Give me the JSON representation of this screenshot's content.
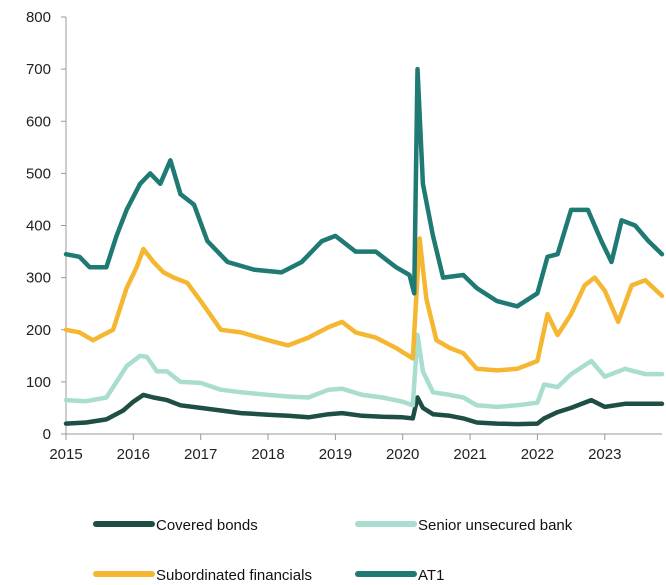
{
  "chart_data": {
    "type": "line",
    "title": "",
    "xlabel": "",
    "ylabel": "",
    "xlim": [
      2015.0,
      2023.85
    ],
    "ylim": [
      0,
      800
    ],
    "yticks": [
      0,
      100,
      200,
      300,
      400,
      500,
      600,
      700,
      800
    ],
    "xticks": [
      2015,
      2016,
      2017,
      2018,
      2019,
      2020,
      2021,
      2022,
      2023
    ],
    "ytick_labels": [
      "0",
      "100",
      "200",
      "300",
      "400",
      "500",
      "600",
      "700",
      "800"
    ],
    "xtick_labels": [
      "2015",
      "2016",
      "2017",
      "2018",
      "2019",
      "2020",
      "2021",
      "2022",
      "2023"
    ],
    "grid": false,
    "legend_position": "bottom",
    "series": [
      {
        "name": "Covered bonds",
        "color": "#1f4e45",
        "points": [
          [
            2015.0,
            20
          ],
          [
            2015.3,
            22
          ],
          [
            2015.6,
            28
          ],
          [
            2015.85,
            45
          ],
          [
            2016.0,
            62
          ],
          [
            2016.15,
            75
          ],
          [
            2016.3,
            70
          ],
          [
            2016.5,
            65
          ],
          [
            2016.7,
            55
          ],
          [
            2017.0,
            50
          ],
          [
            2017.3,
            45
          ],
          [
            2017.6,
            40
          ],
          [
            2018.0,
            37
          ],
          [
            2018.3,
            35
          ],
          [
            2018.6,
            32
          ],
          [
            2018.9,
            38
          ],
          [
            2019.1,
            40
          ],
          [
            2019.4,
            35
          ],
          [
            2019.7,
            33
          ],
          [
            2020.0,
            32
          ],
          [
            2020.15,
            30
          ],
          [
            2020.22,
            70
          ],
          [
            2020.3,
            50
          ],
          [
            2020.45,
            38
          ],
          [
            2020.7,
            35
          ],
          [
            2020.9,
            30
          ],
          [
            2021.1,
            22
          ],
          [
            2021.4,
            20
          ],
          [
            2021.7,
            19
          ],
          [
            2022.0,
            20
          ],
          [
            2022.1,
            30
          ],
          [
            2022.3,
            42
          ],
          [
            2022.5,
            50
          ],
          [
            2022.8,
            65
          ],
          [
            2023.0,
            52
          ],
          [
            2023.3,
            58
          ],
          [
            2023.6,
            58
          ],
          [
            2023.85,
            58
          ]
        ]
      },
      {
        "name": "Senior unsecured bank",
        "color": "#a8ddd0",
        "points": [
          [
            2015.0,
            65
          ],
          [
            2015.3,
            63
          ],
          [
            2015.6,
            70
          ],
          [
            2015.75,
            100
          ],
          [
            2015.9,
            130
          ],
          [
            2016.1,
            150
          ],
          [
            2016.2,
            148
          ],
          [
            2016.35,
            120
          ],
          [
            2016.5,
            120
          ],
          [
            2016.7,
            100
          ],
          [
            2017.0,
            98
          ],
          [
            2017.3,
            85
          ],
          [
            2017.6,
            80
          ],
          [
            2018.0,
            75
          ],
          [
            2018.3,
            72
          ],
          [
            2018.6,
            70
          ],
          [
            2018.9,
            85
          ],
          [
            2019.1,
            87
          ],
          [
            2019.4,
            75
          ],
          [
            2019.7,
            70
          ],
          [
            2020.0,
            62
          ],
          [
            2020.15,
            55
          ],
          [
            2020.22,
            190
          ],
          [
            2020.3,
            120
          ],
          [
            2020.45,
            80
          ],
          [
            2020.7,
            75
          ],
          [
            2020.9,
            70
          ],
          [
            2021.1,
            55
          ],
          [
            2021.4,
            52
          ],
          [
            2021.7,
            55
          ],
          [
            2022.0,
            60
          ],
          [
            2022.1,
            95
          ],
          [
            2022.3,
            90
          ],
          [
            2022.5,
            115
          ],
          [
            2022.8,
            140
          ],
          [
            2023.0,
            110
          ],
          [
            2023.3,
            125
          ],
          [
            2023.6,
            115
          ],
          [
            2023.85,
            115
          ]
        ]
      },
      {
        "name": "Subordinated financials",
        "color": "#f5b731",
        "points": [
          [
            2015.0,
            200
          ],
          [
            2015.2,
            195
          ],
          [
            2015.4,
            180
          ],
          [
            2015.7,
            200
          ],
          [
            2015.9,
            280
          ],
          [
            2016.05,
            320
          ],
          [
            2016.15,
            355
          ],
          [
            2016.3,
            330
          ],
          [
            2016.45,
            310
          ],
          [
            2016.6,
            300
          ],
          [
            2016.8,
            290
          ],
          [
            2017.0,
            255
          ],
          [
            2017.3,
            200
          ],
          [
            2017.6,
            195
          ],
          [
            2018.0,
            180
          ],
          [
            2018.3,
            170
          ],
          [
            2018.6,
            185
          ],
          [
            2018.9,
            205
          ],
          [
            2019.1,
            215
          ],
          [
            2019.3,
            195
          ],
          [
            2019.6,
            185
          ],
          [
            2019.9,
            165
          ],
          [
            2020.15,
            145
          ],
          [
            2020.25,
            375
          ],
          [
            2020.35,
            260
          ],
          [
            2020.5,
            180
          ],
          [
            2020.7,
            165
          ],
          [
            2020.9,
            155
          ],
          [
            2021.1,
            125
          ],
          [
            2021.4,
            122
          ],
          [
            2021.7,
            125
          ],
          [
            2022.0,
            140
          ],
          [
            2022.15,
            230
          ],
          [
            2022.3,
            190
          ],
          [
            2022.5,
            230
          ],
          [
            2022.7,
            285
          ],
          [
            2022.85,
            300
          ],
          [
            2023.0,
            275
          ],
          [
            2023.2,
            215
          ],
          [
            2023.4,
            285
          ],
          [
            2023.6,
            295
          ],
          [
            2023.85,
            265
          ]
        ]
      },
      {
        "name": "AT1",
        "color": "#1f7a73",
        "points": [
          [
            2015.0,
            345
          ],
          [
            2015.2,
            340
          ],
          [
            2015.35,
            320
          ],
          [
            2015.6,
            320
          ],
          [
            2015.75,
            380
          ],
          [
            2015.9,
            430
          ],
          [
            2016.1,
            480
          ],
          [
            2016.25,
            500
          ],
          [
            2016.4,
            480
          ],
          [
            2016.55,
            525
          ],
          [
            2016.7,
            460
          ],
          [
            2016.9,
            440
          ],
          [
            2017.1,
            370
          ],
          [
            2017.4,
            330
          ],
          [
            2017.8,
            315
          ],
          [
            2018.2,
            310
          ],
          [
            2018.5,
            330
          ],
          [
            2018.8,
            370
          ],
          [
            2019.0,
            380
          ],
          [
            2019.3,
            350
          ],
          [
            2019.6,
            350
          ],
          [
            2019.9,
            320
          ],
          [
            2020.1,
            305
          ],
          [
            2020.17,
            270
          ],
          [
            2020.22,
            700
          ],
          [
            2020.3,
            480
          ],
          [
            2020.45,
            380
          ],
          [
            2020.6,
            300
          ],
          [
            2020.9,
            305
          ],
          [
            2021.1,
            280
          ],
          [
            2021.4,
            255
          ],
          [
            2021.7,
            245
          ],
          [
            2022.0,
            270
          ],
          [
            2022.15,
            340
          ],
          [
            2022.3,
            345
          ],
          [
            2022.5,
            430
          ],
          [
            2022.75,
            430
          ],
          [
            2022.95,
            370
          ],
          [
            2023.1,
            330
          ],
          [
            2023.25,
            410
          ],
          [
            2023.45,
            400
          ],
          [
            2023.65,
            370
          ],
          [
            2023.85,
            345
          ]
        ]
      }
    ],
    "legend": [
      {
        "label": "Covered bonds",
        "color": "#1f4e45"
      },
      {
        "label": "Senior unsecured bank",
        "color": "#a8ddd0"
      },
      {
        "label": "Subordinated financials",
        "color": "#f5b731"
      },
      {
        "label": "AT1",
        "color": "#1f7a73"
      }
    ]
  }
}
